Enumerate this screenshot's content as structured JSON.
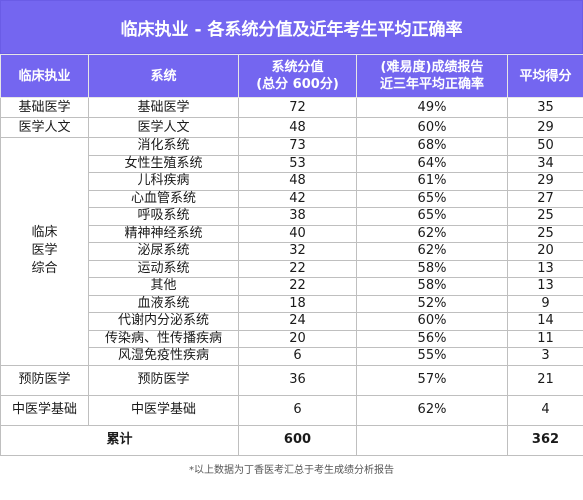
{
  "title": "临床执业 - 各系统分值及近年考生平均正确率",
  "headers": {
    "c1": "临床执业",
    "c2": "系统",
    "c3_line1": "系统分值",
    "c3_line2": "(总分 600分)",
    "c4_line1": "(难易度)成绩报告",
    "c4_line2": "近三年平均正确率",
    "c5": "平均得分"
  },
  "groups": {
    "g1": "基础医学",
    "g2": "医学人文",
    "g3_line1": "临床",
    "g3_line2": "医学",
    "g3_line3": "综合",
    "g4": "预防医学",
    "g5": "中医学基础"
  },
  "rows": [
    {
      "system": "基础医学",
      "score": "72",
      "rate": "49%",
      "avg": "35"
    },
    {
      "system": "医学人文",
      "score": "48",
      "rate": "60%",
      "avg": "29"
    },
    {
      "system": "消化系统",
      "score": "73",
      "rate": "68%",
      "avg": "50"
    },
    {
      "system": "女性生殖系统",
      "score": "53",
      "rate": "64%",
      "avg": "34"
    },
    {
      "system": "儿科疾病",
      "score": "48",
      "rate": "61%",
      "avg": "29"
    },
    {
      "system": "心血管系统",
      "score": "42",
      "rate": "65%",
      "avg": "27"
    },
    {
      "system": "呼吸系统",
      "score": "38",
      "rate": "65%",
      "avg": "25"
    },
    {
      "system": "精神神经系统",
      "score": "40",
      "rate": "62%",
      "avg": "25"
    },
    {
      "system": "泌尿系统",
      "score": "32",
      "rate": "62%",
      "avg": "20"
    },
    {
      "system": "运动系统",
      "score": "22",
      "rate": "58%",
      "avg": "13"
    },
    {
      "system": "其他",
      "score": "22",
      "rate": "58%",
      "avg": "13"
    },
    {
      "system": "血液系统",
      "score": "18",
      "rate": "52%",
      "avg": "9"
    },
    {
      "system": "代谢内分泌系统",
      "score": "24",
      "rate": "60%",
      "avg": "14"
    },
    {
      "system": "传染病、性传播疾病",
      "score": "20",
      "rate": "56%",
      "avg": "11"
    },
    {
      "system": "风湿免疫性疾病",
      "score": "6",
      "rate": "55%",
      "avg": "3"
    },
    {
      "system": "预防医学",
      "score": "36",
      "rate": "57%",
      "avg": "21"
    },
    {
      "system": "中医学基础",
      "score": "6",
      "rate": "62%",
      "avg": "4"
    }
  ],
  "total": {
    "label": "累计",
    "score": "600",
    "avg": "362"
  },
  "footnote": "*以上数据为丁香医考汇总于考生成绩分析报告"
}
